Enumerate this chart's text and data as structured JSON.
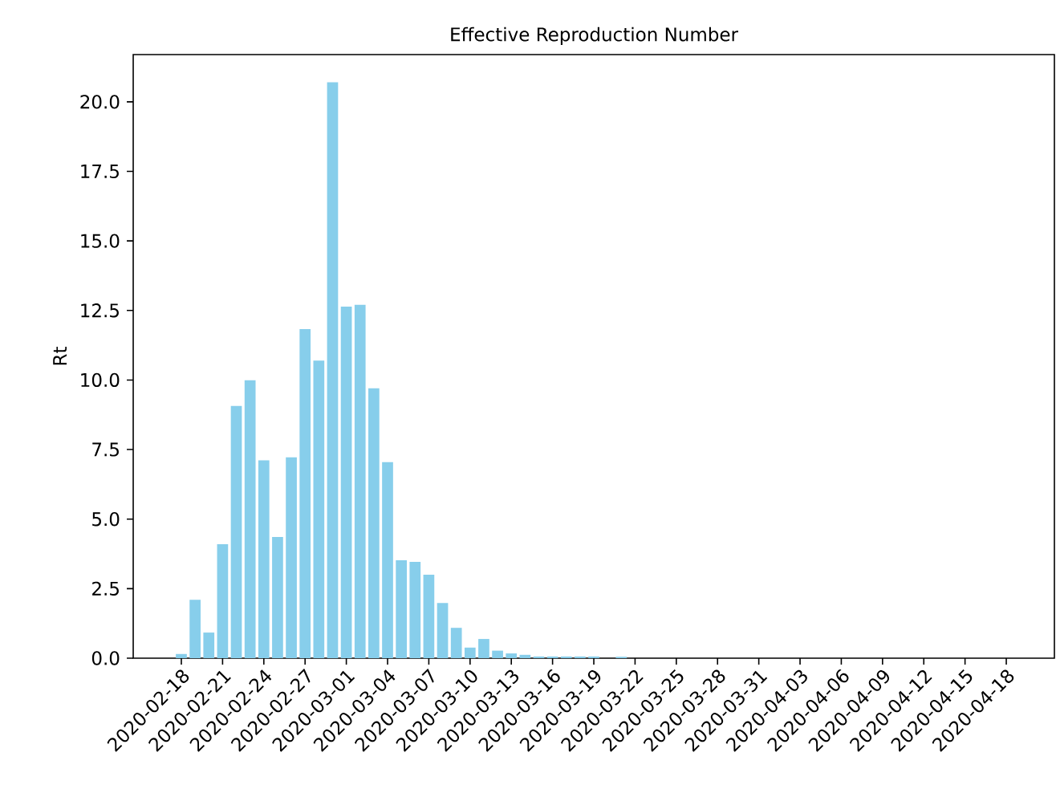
{
  "chart_data": {
    "type": "bar",
    "title": "Effective Reproduction Number",
    "ylabel": "Rt",
    "color": "#87ceeb",
    "x": [
      "2020-02-18",
      "2020-02-19",
      "2020-02-20",
      "2020-02-21",
      "2020-02-22",
      "2020-02-23",
      "2020-02-24",
      "2020-02-25",
      "2020-02-26",
      "2020-02-27",
      "2020-02-28",
      "2020-02-29",
      "2020-03-01",
      "2020-03-02",
      "2020-03-03",
      "2020-03-04",
      "2020-03-05",
      "2020-03-06",
      "2020-03-07",
      "2020-03-08",
      "2020-03-09",
      "2020-03-10",
      "2020-03-11",
      "2020-03-12",
      "2020-03-13",
      "2020-03-14",
      "2020-03-15",
      "2020-03-16",
      "2020-03-17",
      "2020-03-18",
      "2020-03-19",
      "2020-03-20",
      "2020-03-21"
    ],
    "values": [
      0.15,
      2.1,
      0.92,
      4.1,
      9.07,
      9.99,
      7.11,
      4.36,
      7.22,
      11.83,
      10.7,
      20.7,
      12.64,
      12.7,
      9.7,
      7.05,
      3.52,
      3.46,
      3.0,
      1.98,
      1.09,
      0.38,
      0.69,
      0.27,
      0.17,
      0.12,
      0.06,
      0.06,
      0.06,
      0.06,
      0.06,
      0,
      0.05
    ],
    "xlim": [
      "2020-02-14T12:00",
      "2020-04-21T12:00"
    ],
    "xticks": [
      "2020-02-18",
      "2020-02-21",
      "2020-02-24",
      "2020-02-27",
      "2020-03-01",
      "2020-03-04",
      "2020-03-07",
      "2020-03-10",
      "2020-03-13",
      "2020-03-16",
      "2020-03-19",
      "2020-03-22",
      "2020-03-25",
      "2020-03-28",
      "2020-03-31",
      "2020-04-03",
      "2020-04-06",
      "2020-04-09",
      "2020-04-12",
      "2020-04-15",
      "2020-04-18"
    ],
    "ylim": [
      0,
      21.7
    ],
    "yticks": [
      {
        "value": 0,
        "label": "0.0"
      },
      {
        "value": 2.5,
        "label": "2.5"
      },
      {
        "value": 5,
        "label": "5.0"
      },
      {
        "value": 7.5,
        "label": "7.5"
      },
      {
        "value": 10,
        "label": "10.0"
      },
      {
        "value": 12.5,
        "label": "12.5"
      },
      {
        "value": 15,
        "label": "15.0"
      },
      {
        "value": 17.5,
        "label": "17.5"
      },
      {
        "value": 20,
        "label": "20.0"
      }
    ]
  }
}
